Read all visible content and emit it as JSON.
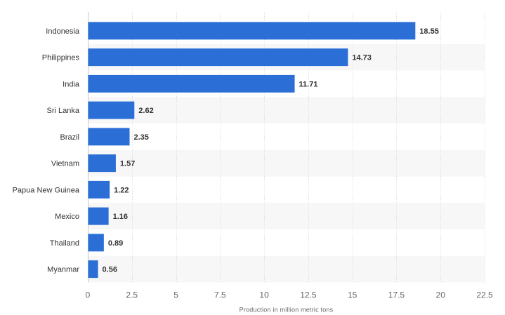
{
  "chart_data": {
    "type": "bar",
    "orientation": "horizontal",
    "categories": [
      "Indonesia",
      "Philippines",
      "India",
      "Sri Lanka",
      "Brazil",
      "Vietnam",
      "Papua New Guinea",
      "Mexico",
      "Thailand",
      "Myanmar"
    ],
    "values": [
      18.55,
      14.73,
      11.71,
      2.62,
      2.35,
      1.57,
      1.22,
      1.16,
      0.89,
      0.56
    ],
    "value_labels": [
      "18.55",
      "14.73",
      "11.71",
      "2.62",
      "2.35",
      "1.57",
      "1.22",
      "1.16",
      "0.89",
      "0.56"
    ],
    "xlabel": "Production in million metric tons",
    "ylabel": "",
    "xlim": [
      0,
      22.5
    ],
    "x_ticks": [
      0,
      2.5,
      5,
      7.5,
      10,
      12.5,
      15,
      17.5,
      20,
      22.5
    ],
    "x_tick_labels": [
      "0",
      "2.5",
      "5",
      "7.5",
      "10",
      "12.5",
      "15",
      "17.5",
      "20",
      "22.5"
    ],
    "grid": "vertical-dashed",
    "legend": "none",
    "bar_color": "#2b6fd6",
    "band_color": "#f7f7f7"
  }
}
